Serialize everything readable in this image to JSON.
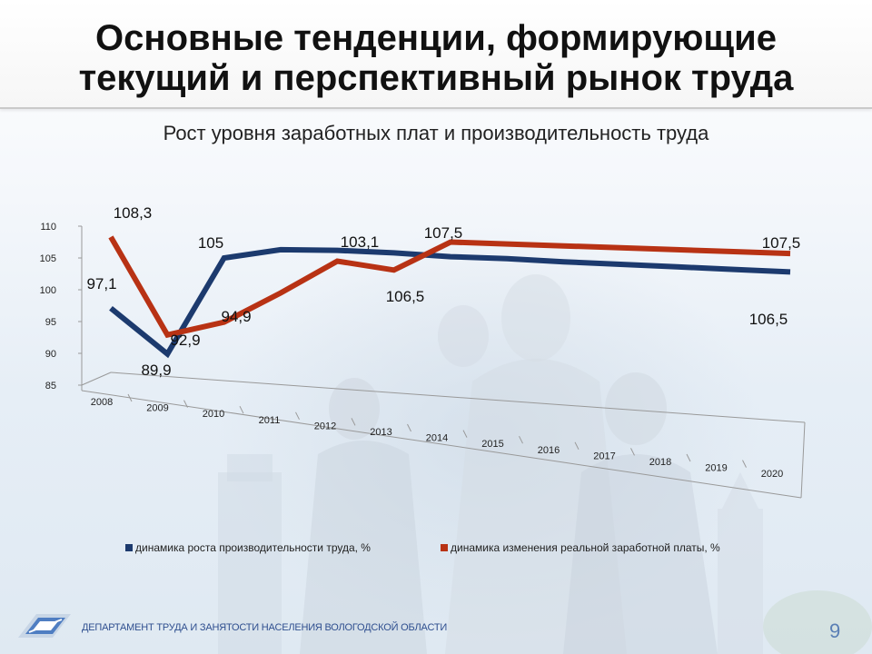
{
  "slide": {
    "title_line1": "Основные тенденции, формирующие",
    "title_line2": "текущий и перспективный рынок труда",
    "footer": "ДЕПАРТАМЕНТ ТРУДА И ЗАНЯТОСТИ НАСЕЛЕНИЯ ВОЛОГОДСКОЙ ОБЛАСТИ",
    "page_number": "9"
  },
  "colors": {
    "productivity": "#1c3a6e",
    "wages": "#b83214",
    "footer_text": "#2f4f8f"
  },
  "chart_data": {
    "type": "line",
    "title": "Рост уровня заработных плат и производительность труда",
    "xlabel": "",
    "ylabel": "",
    "ylim": [
      85,
      110
    ],
    "yticks": [
      85,
      90,
      95,
      100,
      105,
      110
    ],
    "categories": [
      "2008",
      "2009",
      "2010",
      "2011",
      "2012",
      "2013",
      "2014",
      "2015",
      "2016",
      "2017",
      "2018",
      "2019",
      "2020"
    ],
    "series": [
      {
        "name": "динамика роста производительности труда, %",
        "color": "#1c3a6e",
        "values": [
          97.1,
          89.9,
          105,
          106.3,
          106.2,
          105.8,
          105.2,
          104.9,
          104.4,
          104.0,
          103.6,
          103.2,
          102.8
        ]
      },
      {
        "name": "динамика изменения  реальной заработной платы, %",
        "color": "#b83214",
        "values": [
          108.3,
          92.9,
          94.9,
          99.5,
          104.5,
          103.1,
          107.5,
          107.2,
          106.9,
          106.6,
          106.3,
          106.0,
          105.7
        ]
      }
    ],
    "data_labels": [
      {
        "text": "97,1"
      },
      {
        "text": "108,3"
      },
      {
        "text": "89,9"
      },
      {
        "text": "92,9"
      },
      {
        "text": "105"
      },
      {
        "text": "94,9"
      },
      {
        "text": "103,1"
      },
      {
        "text": "107,5"
      },
      {
        "text": "106,5"
      },
      {
        "text": "107,5"
      },
      {
        "text": "106,5"
      }
    ],
    "legend_position": "bottom",
    "grid": false
  }
}
